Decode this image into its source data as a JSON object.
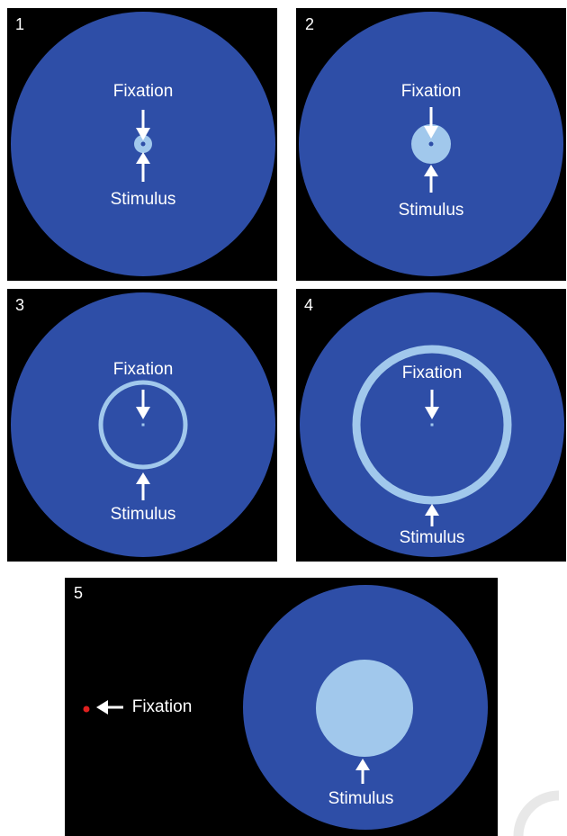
{
  "colors": {
    "background": "#000000",
    "display_disc": "#2e4ea7",
    "stimulus": "#a1c8ec",
    "fixation_dot_center": "#2e4ea7",
    "fixation_dot_peripheral": "#e0201f",
    "text": "#ffffff"
  },
  "panels": [
    {
      "number": "1",
      "fixation_label": "Fixation",
      "stimulus_label": "Stimulus",
      "stimulus_shape": "small disc at center"
    },
    {
      "number": "2",
      "fixation_label": "Fixation",
      "stimulus_label": "Stimulus",
      "stimulus_shape": "medium disc at center"
    },
    {
      "number": "3",
      "fixation_label": "Fixation",
      "stimulus_label": "Stimulus",
      "stimulus_shape": "thin ring"
    },
    {
      "number": "4",
      "fixation_label": "Fixation",
      "stimulus_label": "Stimulus",
      "stimulus_shape": "large ring"
    },
    {
      "number": "5",
      "fixation_label": "Fixation",
      "stimulus_label": "Stimulus",
      "stimulus_shape": "large disc, peripheral fixation"
    }
  ]
}
